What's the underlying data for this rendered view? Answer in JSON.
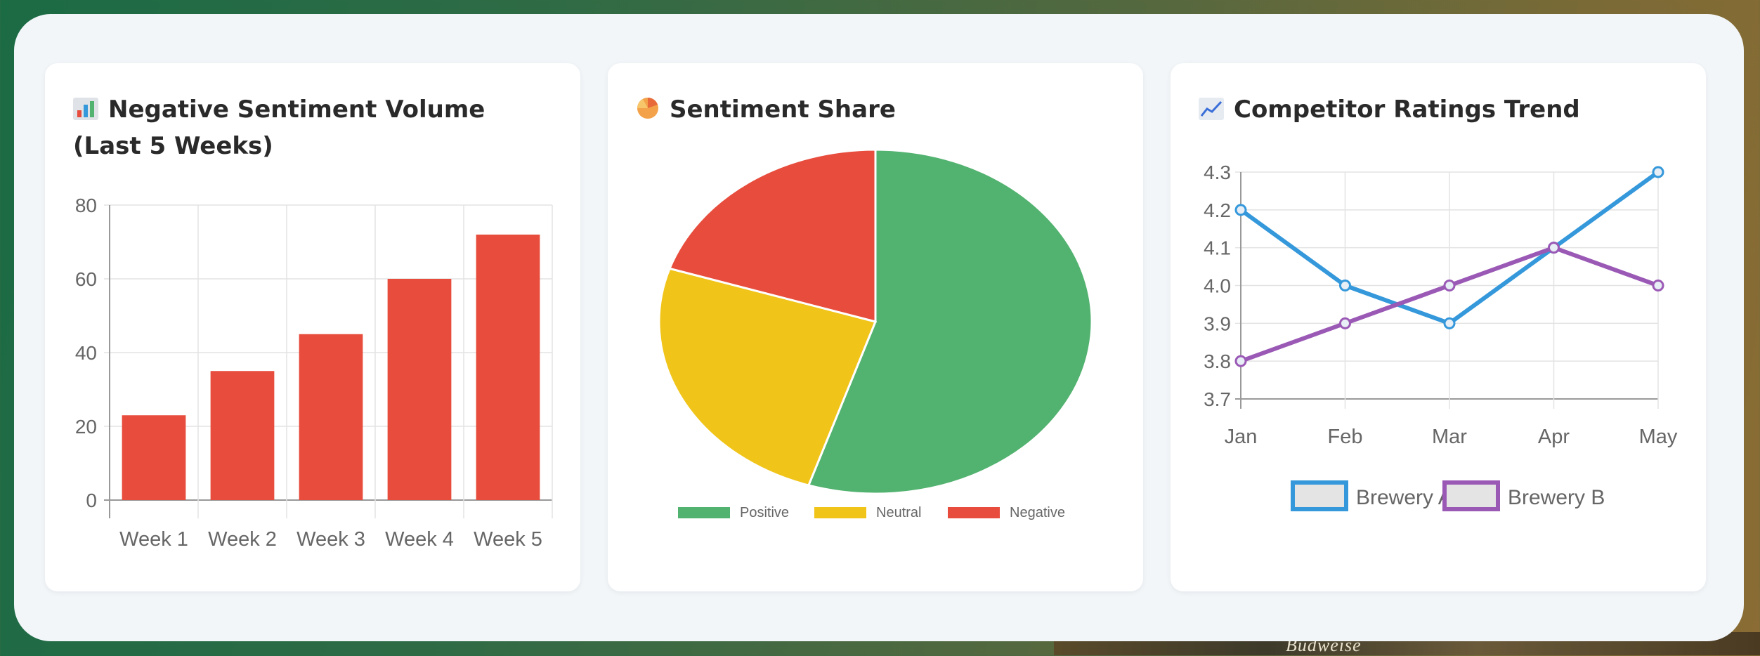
{
  "bar_card": {
    "icon": "bar-chart-icon",
    "title": "Negative Sentiment Volume (Last 5 Weeks)"
  },
  "pie_card": {
    "icon": "pie-chart-icon",
    "title": "Sentiment Share"
  },
  "line_card": {
    "icon": "line-chart-icon",
    "title": "Competitor Ratings Trend"
  },
  "background": {
    "label": "Budweise"
  },
  "chart_data": [
    {
      "type": "bar",
      "title": "Negative Sentiment Volume (Last 5 Weeks)",
      "categories": [
        "Week 1",
        "Week 2",
        "Week 3",
        "Week 4",
        "Week 5"
      ],
      "values": [
        23,
        35,
        45,
        60,
        72
      ],
      "ylim": [
        0,
        80
      ],
      "yticks": [
        0,
        20,
        40,
        60,
        80
      ],
      "grid": true,
      "color": "#e74c3c"
    },
    {
      "type": "pie",
      "title": "Sentiment Share",
      "labels": [
        "Positive",
        "Neutral",
        "Negative"
      ],
      "values": [
        55,
        25,
        20
      ],
      "colors": [
        "#52b26f",
        "#f0c419",
        "#e74c3c"
      ],
      "legend": "bottom"
    },
    {
      "type": "line",
      "title": "Competitor Ratings Trend",
      "categories": [
        "Jan",
        "Feb",
        "Mar",
        "Apr",
        "May"
      ],
      "ylim": [
        3.7,
        4.3
      ],
      "yticks": [
        "3.7",
        "3.8",
        "3.9",
        "4.0",
        "4.1",
        "4.2",
        "4.3"
      ],
      "series": [
        {
          "name": "Brewery A",
          "values": [
            4.2,
            4.0,
            3.9,
            4.1,
            4.3
          ],
          "color": "#3498db"
        },
        {
          "name": "Brewery B",
          "values": [
            3.8,
            3.9,
            4.0,
            4.1,
            4.0
          ],
          "color": "#9b59b6"
        }
      ],
      "legend": "bottom",
      "grid": true
    }
  ]
}
